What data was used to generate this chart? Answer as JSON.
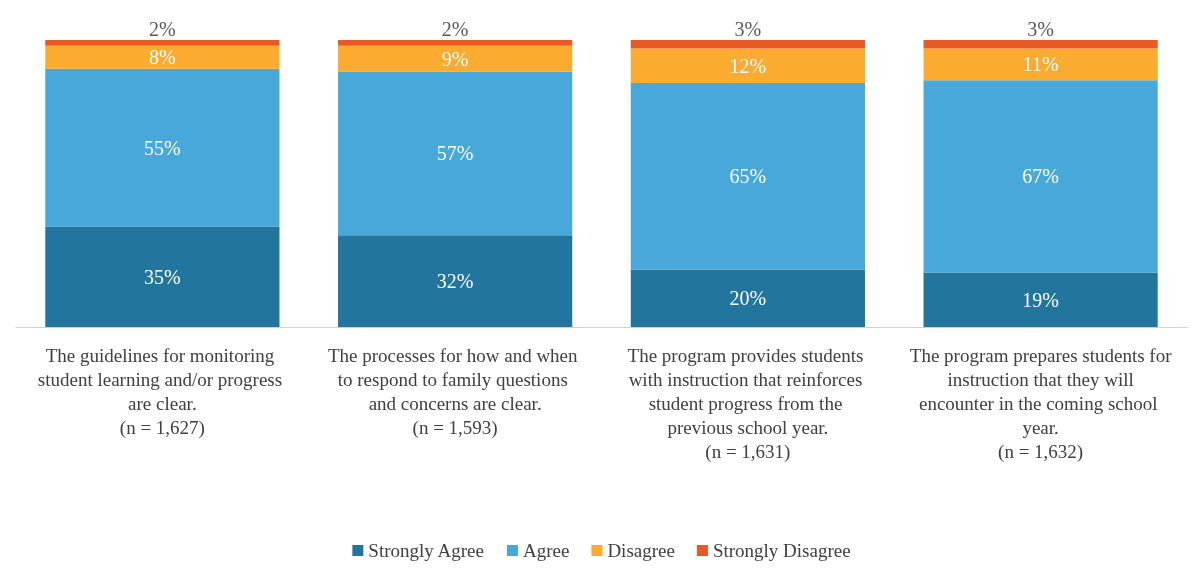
{
  "chart_data": {
    "type": "bar",
    "stacked": true,
    "categories": [
      "The guidelines for monitoring student learning and/or progress are clear.\n(n = 1,627)",
      "The processes for how and when to respond to family questions and concerns are clear.\n(n = 1,593)",
      "The program provides students with instruction that reinforces student progress from the previous school year.\n(n = 1,631)",
      "The program prepares students for instruction that they will encounter in the coming school year.\n(n = 1,632)"
    ],
    "series": [
      {
        "name": "Strongly Agree",
        "color": "#22759c",
        "values": [
          35,
          32,
          20,
          19
        ],
        "value_labels": [
          "35%",
          "32%",
          "20%",
          "19%"
        ]
      },
      {
        "name": "Agree",
        "color": "#48a8da",
        "values": [
          55,
          57,
          65,
          67
        ],
        "value_labels": [
          "55%",
          "57%",
          "65%",
          "67%"
        ]
      },
      {
        "name": "Disagree",
        "color": "#fbab30",
        "values": [
          8,
          9,
          12,
          11
        ],
        "value_labels": [
          "8%",
          "9%",
          "12%",
          "11%"
        ]
      },
      {
        "name": "Strongly Disagree",
        "color": "#e85a25",
        "values": [
          2,
          2,
          3,
          3
        ],
        "value_labels": [
          "2%",
          "2%",
          "3%",
          "3%"
        ]
      }
    ],
    "legend": "bottom"
  }
}
